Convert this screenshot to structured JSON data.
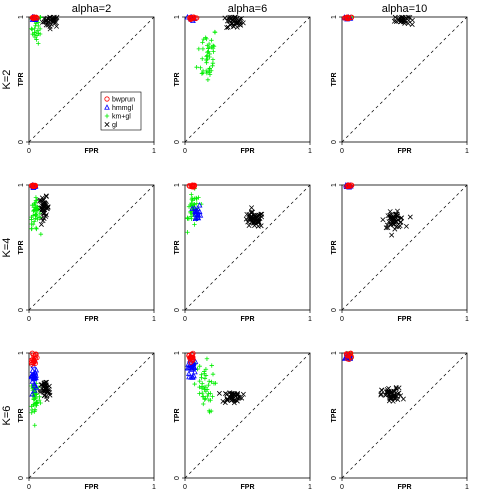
{
  "chart_data": {
    "type": "scatter",
    "layout": "3x3 grid of ROC-space scatter panels",
    "col_titles": [
      "alpha=2",
      "alpha=6",
      "alpha=10"
    ],
    "row_titles": [
      "K=2",
      "K=4",
      "K=6"
    ],
    "xlabel": "FPR",
    "ylabel": "TPR",
    "xlim": [
      0,
      1
    ],
    "ylim": [
      0,
      1
    ],
    "x_ticks": [
      "0",
      "1"
    ],
    "y_ticks": [
      "0",
      "1"
    ],
    "x_tick_values": [
      0,
      1
    ],
    "y_tick_values": [
      0,
      1
    ],
    "reference_line": "diagonal y = x (dashed)",
    "grid": false,
    "legend": {
      "placement": "panel K=2 / alpha=2, middle-right",
      "entries": [
        {
          "name": "bwprun",
          "marker": "circle",
          "color": "#ff0000"
        },
        {
          "name": "hmmgl",
          "marker": "triangle",
          "color": "#0000ff"
        },
        {
          "name": "km+gl",
          "marker": "plus",
          "color": "#00ee00"
        },
        {
          "name": "gl",
          "marker": "x",
          "color": "#000000"
        }
      ]
    },
    "panels": [
      {
        "row": 0,
        "col": 0,
        "clusters": [
          {
            "series": "gl",
            "cx": 0.18,
            "cy": 0.97,
            "sx": 0.035,
            "sy": 0.025,
            "n": 35
          },
          {
            "series": "km+gl",
            "cx": 0.06,
            "cy": 0.91,
            "sx": 0.02,
            "sy": 0.06,
            "n": 28
          },
          {
            "series": "hmmgl",
            "cx": 0.04,
            "cy": 0.99,
            "sx": 0.012,
            "sy": 0.01,
            "n": 12
          },
          {
            "series": "bwprun",
            "cx": 0.04,
            "cy": 0.995,
            "sx": 0.012,
            "sy": 0.006,
            "n": 14
          }
        ]
      },
      {
        "row": 0,
        "col": 1,
        "clusters": [
          {
            "series": "gl",
            "cx": 0.4,
            "cy": 0.96,
            "sx": 0.035,
            "sy": 0.03,
            "n": 35
          },
          {
            "series": "km+gl",
            "cx": 0.18,
            "cy": 0.7,
            "sx": 0.04,
            "sy": 0.12,
            "n": 45
          },
          {
            "series": "hmmgl",
            "cx": 0.05,
            "cy": 0.99,
            "sx": 0.015,
            "sy": 0.01,
            "n": 12
          },
          {
            "series": "bwprun",
            "cx": 0.06,
            "cy": 0.995,
            "sx": 0.015,
            "sy": 0.006,
            "n": 14
          }
        ]
      },
      {
        "row": 0,
        "col": 2,
        "clusters": [
          {
            "series": "gl",
            "cx": 0.48,
            "cy": 0.98,
            "sx": 0.03,
            "sy": 0.02,
            "n": 30
          },
          {
            "series": "km+gl",
            "cx": 0.05,
            "cy": 0.995,
            "sx": 0.015,
            "sy": 0.006,
            "n": 14
          },
          {
            "series": "hmmgl",
            "cx": 0.05,
            "cy": 0.995,
            "sx": 0.015,
            "sy": 0.006,
            "n": 10
          },
          {
            "series": "bwprun",
            "cx": 0.05,
            "cy": 0.995,
            "sx": 0.015,
            "sy": 0.006,
            "n": 12
          }
        ]
      },
      {
        "row": 1,
        "col": 0,
        "clusters": [
          {
            "series": "gl",
            "cx": 0.12,
            "cy": 0.82,
            "sx": 0.02,
            "sy": 0.04,
            "n": 40
          },
          {
            "series": "km+gl",
            "cx": 0.05,
            "cy": 0.76,
            "sx": 0.02,
            "sy": 0.06,
            "n": 40
          },
          {
            "series": "hmmgl",
            "cx": 0.04,
            "cy": 0.99,
            "sx": 0.01,
            "sy": 0.01,
            "n": 12
          },
          {
            "series": "bwprun",
            "cx": 0.04,
            "cy": 0.995,
            "sx": 0.01,
            "sy": 0.006,
            "n": 14
          }
        ]
      },
      {
        "row": 1,
        "col": 1,
        "clusters": [
          {
            "series": "gl",
            "cx": 0.55,
            "cy": 0.72,
            "sx": 0.04,
            "sy": 0.03,
            "n": 50
          },
          {
            "series": "km+gl",
            "cx": 0.07,
            "cy": 0.8,
            "sx": 0.025,
            "sy": 0.07,
            "n": 40
          },
          {
            "series": "hmmgl",
            "cx": 0.1,
            "cy": 0.78,
            "sx": 0.015,
            "sy": 0.03,
            "n": 18
          },
          {
            "series": "bwprun",
            "cx": 0.06,
            "cy": 0.995,
            "sx": 0.012,
            "sy": 0.006,
            "n": 14
          }
        ]
      },
      {
        "row": 1,
        "col": 2,
        "clusters": [
          {
            "series": "gl",
            "cx": 0.42,
            "cy": 0.72,
            "sx": 0.04,
            "sy": 0.03,
            "n": 50
          },
          {
            "series": "km+gl",
            "cx": 0.05,
            "cy": 0.995,
            "sx": 0.012,
            "sy": 0.006,
            "n": 14
          },
          {
            "series": "hmmgl",
            "cx": 0.05,
            "cy": 0.995,
            "sx": 0.012,
            "sy": 0.006,
            "n": 10
          },
          {
            "series": "bwprun",
            "cx": 0.05,
            "cy": 0.995,
            "sx": 0.012,
            "sy": 0.006,
            "n": 12
          }
        ]
      },
      {
        "row": 2,
        "col": 0,
        "clusters": [
          {
            "series": "gl",
            "cx": 0.13,
            "cy": 0.7,
            "sx": 0.02,
            "sy": 0.04,
            "n": 40
          },
          {
            "series": "km+gl",
            "cx": 0.05,
            "cy": 0.65,
            "sx": 0.02,
            "sy": 0.08,
            "n": 45
          },
          {
            "series": "hmmgl",
            "cx": 0.04,
            "cy": 0.8,
            "sx": 0.012,
            "sy": 0.08,
            "n": 30
          },
          {
            "series": "bwprun",
            "cx": 0.04,
            "cy": 0.96,
            "sx": 0.01,
            "sy": 0.03,
            "n": 20
          }
        ]
      },
      {
        "row": 2,
        "col": 1,
        "clusters": [
          {
            "series": "gl",
            "cx": 0.38,
            "cy": 0.65,
            "sx": 0.04,
            "sy": 0.025,
            "n": 40
          },
          {
            "series": "km+gl",
            "cx": 0.15,
            "cy": 0.72,
            "sx": 0.04,
            "sy": 0.1,
            "n": 45
          },
          {
            "series": "hmmgl",
            "cx": 0.05,
            "cy": 0.88,
            "sx": 0.015,
            "sy": 0.05,
            "n": 25
          },
          {
            "series": "bwprun",
            "cx": 0.05,
            "cy": 0.97,
            "sx": 0.01,
            "sy": 0.02,
            "n": 18
          }
        ]
      },
      {
        "row": 2,
        "col": 2,
        "clusters": [
          {
            "series": "gl",
            "cx": 0.4,
            "cy": 0.66,
            "sx": 0.04,
            "sy": 0.03,
            "n": 50
          },
          {
            "series": "km+gl",
            "cx": 0.06,
            "cy": 0.975,
            "sx": 0.015,
            "sy": 0.015,
            "n": 22
          },
          {
            "series": "hmmgl",
            "cx": 0.05,
            "cy": 0.975,
            "sx": 0.012,
            "sy": 0.015,
            "n": 10
          },
          {
            "series": "bwprun",
            "cx": 0.05,
            "cy": 0.98,
            "sx": 0.012,
            "sy": 0.012,
            "n": 12
          }
        ]
      }
    ]
  }
}
